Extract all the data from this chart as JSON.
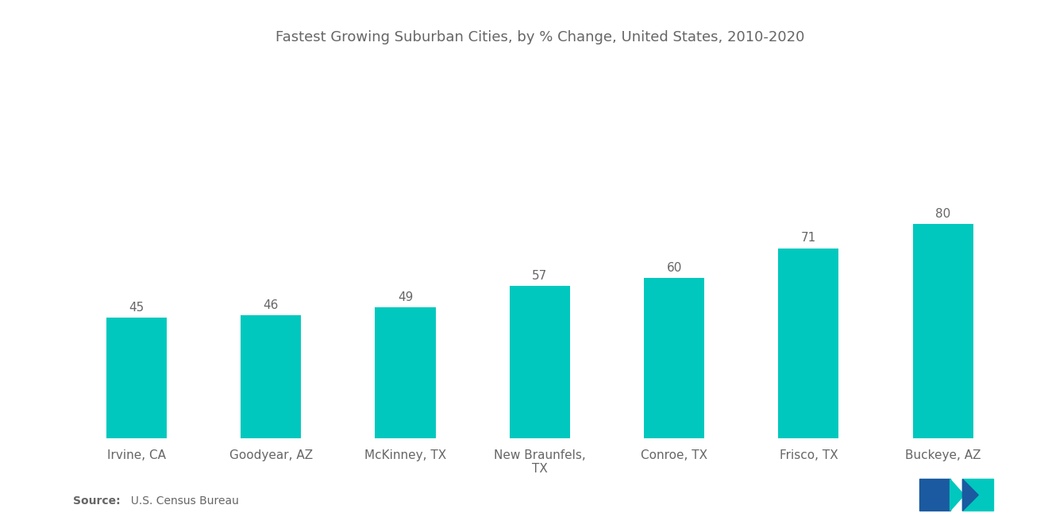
{
  "title": "Fastest Growing Suburban Cities, by % Change, United States, 2010-2020",
  "categories": [
    "Irvine, CA",
    "Goodyear, AZ",
    "McKinney, TX",
    "New Braunfels,\nTX",
    "Conroe, TX",
    "Frisco, TX",
    "Buckeye, AZ"
  ],
  "values": [
    45,
    46,
    49,
    57,
    60,
    71,
    80
  ],
  "bar_color": "#00C8BE",
  "background_color": "#ffffff",
  "title_fontsize": 13,
  "label_fontsize": 11,
  "value_fontsize": 11,
  "source_bold": "Source:",
  "source_rest": "  U.S. Census Bureau",
  "ylim": [
    0,
    140
  ],
  "bar_width": 0.45,
  "logo_blue": "#1B5AA0",
  "logo_teal": "#00C8BE"
}
